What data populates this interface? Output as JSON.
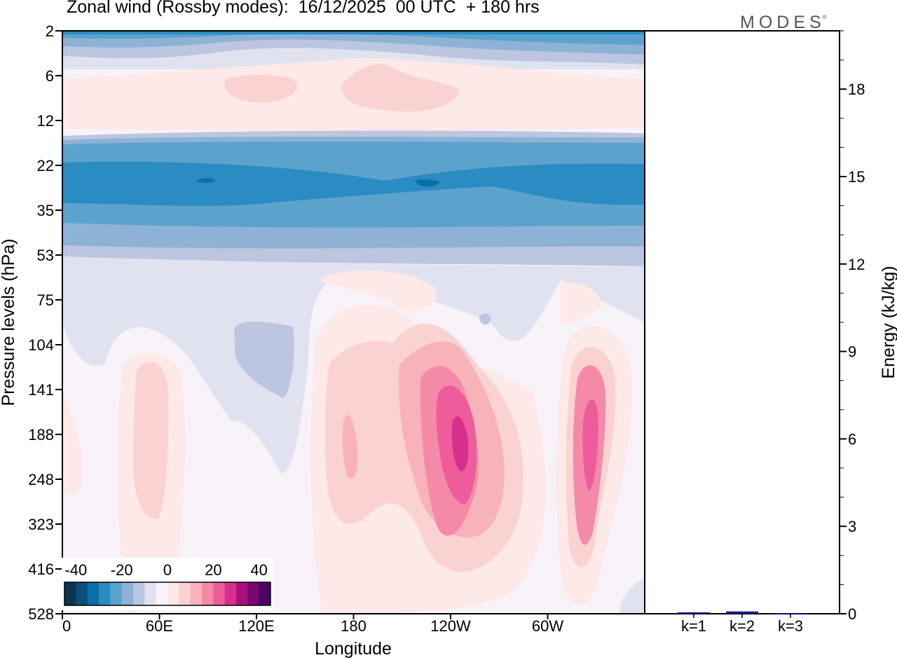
{
  "chart_data": {
    "type": "heatmap",
    "title": "Zonal wind (Rossby modes):  16/12/2025  00 UTC  + 180 hrs",
    "logo": "MODES",
    "logo_mark": "®",
    "xlabel": "Longitude",
    "ylabel": "Pressure levels (hPa)",
    "x_ticks": [
      "0",
      "60E",
      "120E",
      "180",
      "120W",
      "60W"
    ],
    "y_ticks": [
      "2",
      "6",
      "12",
      "22",
      "35",
      "53",
      "75",
      "104",
      "141",
      "188",
      "248",
      "323",
      "416",
      "528"
    ],
    "colorbar": {
      "tick_labels": [
        "-40",
        "-20",
        "0",
        "20",
        "40"
      ],
      "range": [
        -45,
        45
      ],
      "colors": [
        "#0b3551",
        "#0c4f7a",
        "#0b6ea9",
        "#2b8bc3",
        "#5ba3cd",
        "#8eb2d6",
        "#bcc6e0",
        "#e0e3ef",
        "#f7f3f8",
        "#fde9e7",
        "#fbd2d2",
        "#f8b2ba",
        "#f58aa8",
        "#ee5c9c",
        "#d62f8e",
        "#a8117a",
        "#7a0871",
        "#4b0264"
      ]
    },
    "energy_panel": {
      "ylabel": "Energy (kJ/kg)",
      "ylim": [
        0,
        20
      ],
      "y_ticks": [
        "0",
        "3",
        "6",
        "9",
        "12",
        "15",
        "18"
      ],
      "categories": [
        "k=1",
        "k=2",
        "k=3"
      ],
      "values": [
        0.05,
        0.08,
        0.01
      ],
      "bar_color": "#1a1a8c"
    }
  }
}
